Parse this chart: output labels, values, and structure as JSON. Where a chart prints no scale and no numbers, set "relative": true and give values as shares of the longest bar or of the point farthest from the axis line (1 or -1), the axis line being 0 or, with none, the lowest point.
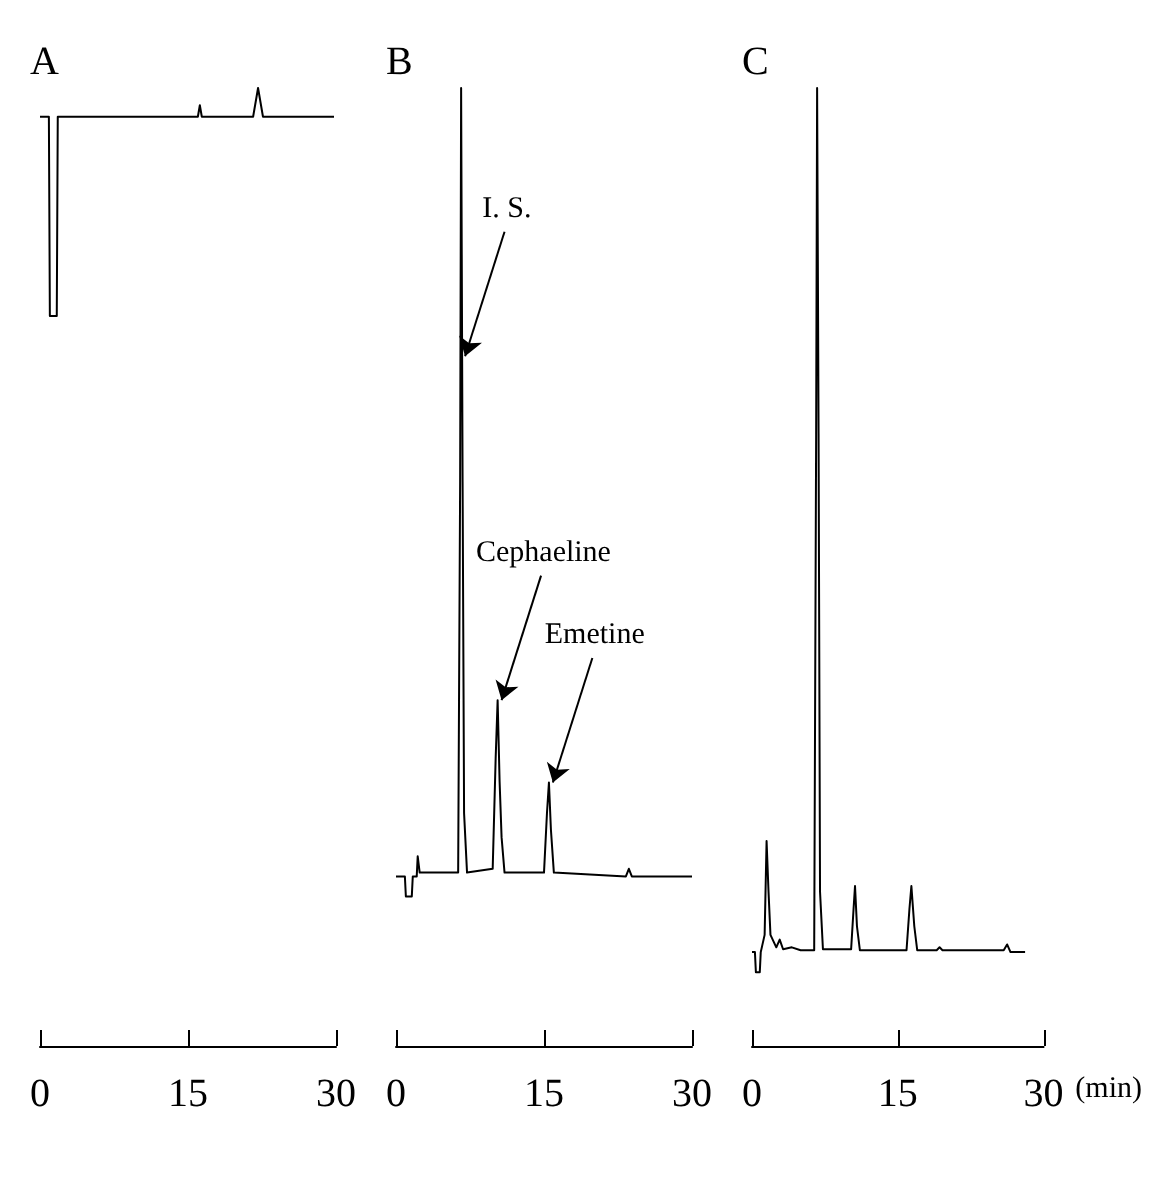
{
  "chart_data": [
    {
      "type": "line",
      "title": "A",
      "relative": true,
      "xlim": [
        0,
        30
      ],
      "xticks": [
        0,
        15,
        30
      ],
      "grid": false,
      "marker": "none",
      "line_style": "solid",
      "tick_labels": "x",
      "series": [
        {
          "color": "#000000",
          "x": [
            0,
            0.9,
            1.0,
            1.7,
            1.8,
            16,
            16.2,
            16.4,
            21.6,
            22.1,
            22.6,
            29.8
          ],
          "values": [
            0.97,
            0.97,
            0.762,
            0.762,
            0.97,
            0.97,
            0.982,
            0.97,
            0.97,
            1,
            0.97,
            0.97
          ]
        }
      ]
    },
    {
      "type": "line",
      "title": "B",
      "relative": true,
      "xlim": [
        0,
        30
      ],
      "xticks": [
        0,
        15,
        30
      ],
      "grid": false,
      "marker": "none",
      "line_style": "solid",
      "tick_labels": "x",
      "annotations": [
        {
          "text": "I. S.",
          "x": 6.6,
          "y": 0.72
        },
        {
          "text": "Cephaeline",
          "x": 10.3,
          "y": 0.361
        },
        {
          "text": "Emetine",
          "x": 15.5,
          "y": 0.275
        }
      ],
      "series": [
        {
          "color": "#000000",
          "x": [
            0,
            0.9,
            1.0,
            1.6,
            1.7,
            2.1,
            2.2,
            2.4,
            4.5,
            6.3,
            6.5,
            6.6,
            6.75,
            6.9,
            7.2,
            9.8,
            10.1,
            10.3,
            10.5,
            10.7,
            11.0,
            15.0,
            15.3,
            15.5,
            15.7,
            16.0,
            23.3,
            23.6,
            23.9,
            30
          ],
          "values": [
            0.177,
            0.177,
            0.156,
            0.156,
            0.177,
            0.177,
            0.198,
            0.181,
            0.181,
            0.181,
            0.589,
            1,
            0.589,
            0.243,
            0.181,
            0.185,
            0.3,
            0.361,
            0.276,
            0.218,
            0.181,
            0.181,
            0.243,
            0.275,
            0.226,
            0.181,
            0.177,
            0.185,
            0.177,
            0.177
          ]
        }
      ]
    },
    {
      "type": "line",
      "title": "C",
      "xlabel": "(min)",
      "relative": true,
      "xlim": [
        0,
        30
      ],
      "xticks": [
        0,
        15,
        30
      ],
      "grid": false,
      "marker": "none",
      "line_style": "solid",
      "tick_labels": "x",
      "series": [
        {
          "color": "#000000",
          "x": [
            0,
            0.3,
            0.4,
            0.8,
            0.9,
            1.3,
            1.5,
            1.7,
            1.9,
            2.5,
            2.85,
            3.2,
            4.1,
            5,
            6.4,
            6.6,
            6.7,
            6.85,
            7.0,
            7.3,
            10.2,
            10.45,
            10.6,
            10.8,
            11.1,
            15.9,
            16.2,
            16.4,
            16.7,
            17.0,
            19.0,
            19.3,
            19.6,
            25.9,
            26.25,
            26.6,
            28.1
          ],
          "values": [
            0.098,
            0.098,
            0.077,
            0.077,
            0.098,
            0.116,
            0.214,
            0.161,
            0.116,
            0.103,
            0.111,
            0.101,
            0.103,
            0.1,
            0.1,
            0.639,
            1,
            0.639,
            0.161,
            0.101,
            0.101,
            0.143,
            0.167,
            0.125,
            0.1,
            0.1,
            0.143,
            0.167,
            0.125,
            0.1,
            0.1,
            0.103,
            0.1,
            0.1,
            0.106,
            0.098,
            0.098
          ]
        }
      ]
    }
  ]
}
